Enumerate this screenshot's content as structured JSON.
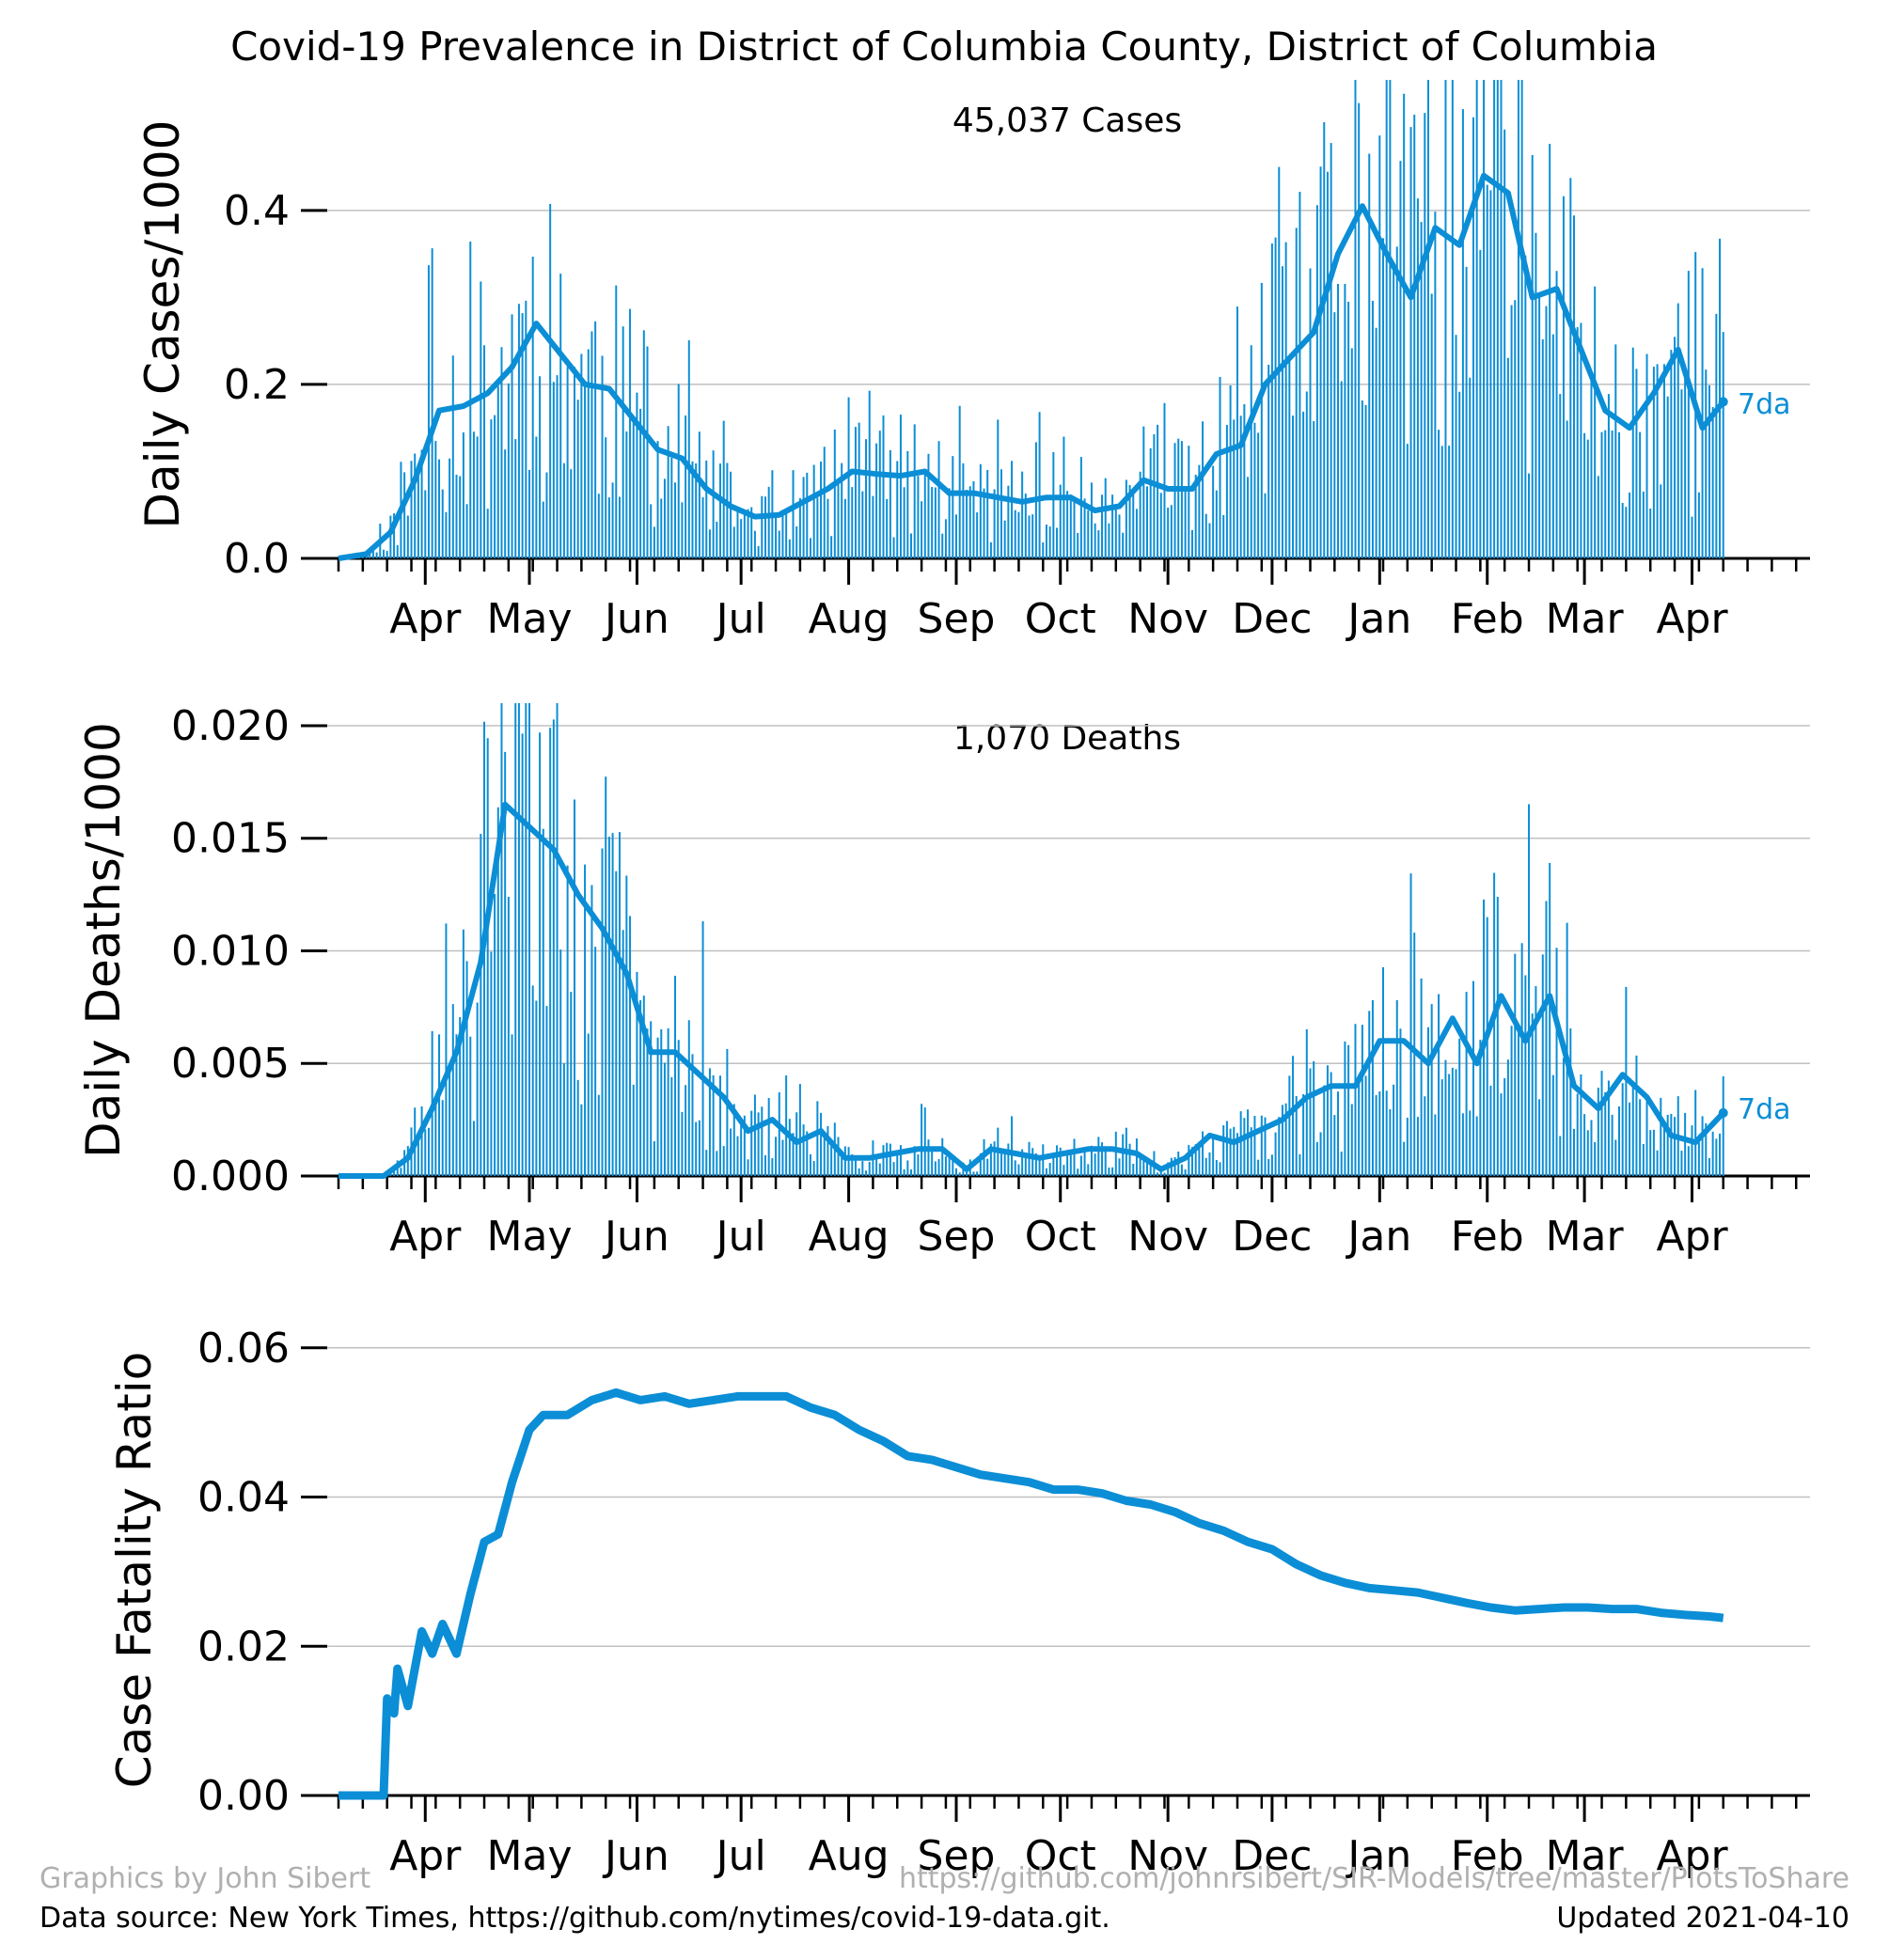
{
  "figure": {
    "title": "Covid-19 Prevalence in District of Columbia County, District of Columbia",
    "credit_left": "Graphics by John Sibert",
    "credit_right": "https://github.com/johnrsibert/SIR-Models/tree/master/PlotsToShare",
    "source": "Data source: New York Times, https://github.com/nytimes/covid-19-data.git.",
    "updated": "Updated 2021-04-10",
    "colors": {
      "series": "#0b8ed6",
      "grid": "#c0c0c0",
      "credit": "#b0b0b0"
    }
  },
  "chart_data": [
    {
      "type": "bar",
      "panel": "cases",
      "ylabel": "Daily Cases/1000",
      "annotation": "45,037 Cases",
      "line_label": "7da",
      "ylim": [
        0,
        0.55
      ],
      "yticks": [
        0.0,
        0.2,
        0.4
      ],
      "ytick_labels": [
        "0.0",
        "0.2",
        "0.4"
      ],
      "grid": true,
      "x_start": "2020-03-07",
      "x_end": "2021-04-10",
      "month_labels": [
        "Apr",
        "May",
        "Jun",
        "Jul",
        "Aug",
        "Sep",
        "Oct",
        "Nov",
        "Dec",
        "Jan",
        "Feb",
        "Mar",
        "Apr"
      ],
      "series": [
        {
          "name": "7da",
          "kind": "line",
          "points": [
            [
              "2020-03-07",
              0.0
            ],
            [
              "2020-03-15",
              0.005
            ],
            [
              "2020-03-22",
              0.03
            ],
            [
              "2020-03-29",
              0.09
            ],
            [
              "2020-04-05",
              0.17
            ],
            [
              "2020-04-12",
              0.175
            ],
            [
              "2020-04-19",
              0.19
            ],
            [
              "2020-04-26",
              0.22
            ],
            [
              "2020-05-03",
              0.27
            ],
            [
              "2020-05-10",
              0.235
            ],
            [
              "2020-05-17",
              0.2
            ],
            [
              "2020-05-24",
              0.195
            ],
            [
              "2020-05-31",
              0.16
            ],
            [
              "2020-06-07",
              0.125
            ],
            [
              "2020-06-14",
              0.115
            ],
            [
              "2020-06-21",
              0.08
            ],
            [
              "2020-06-28",
              0.06
            ],
            [
              "2020-07-05",
              0.048
            ],
            [
              "2020-07-12",
              0.05
            ],
            [
              "2020-07-19",
              0.065
            ],
            [
              "2020-07-26",
              0.08
            ],
            [
              "2020-08-02",
              0.1
            ],
            [
              "2020-08-09",
              0.097
            ],
            [
              "2020-08-16",
              0.095
            ],
            [
              "2020-08-23",
              0.1
            ],
            [
              "2020-08-30",
              0.075
            ],
            [
              "2020-09-06",
              0.075
            ],
            [
              "2020-09-13",
              0.07
            ],
            [
              "2020-09-20",
              0.065
            ],
            [
              "2020-09-27",
              0.07
            ],
            [
              "2020-10-04",
              0.07
            ],
            [
              "2020-10-11",
              0.055
            ],
            [
              "2020-10-18",
              0.06
            ],
            [
              "2020-10-25",
              0.09
            ],
            [
              "2020-11-01",
              0.08
            ],
            [
              "2020-11-08",
              0.08
            ],
            [
              "2020-11-15",
              0.12
            ],
            [
              "2020-11-22",
              0.13
            ],
            [
              "2020-11-29",
              0.2
            ],
            [
              "2020-12-06",
              0.23
            ],
            [
              "2020-12-13",
              0.26
            ],
            [
              "2020-12-20",
              0.35
            ],
            [
              "2020-12-27",
              0.405
            ],
            [
              "2021-01-03",
              0.35
            ],
            [
              "2021-01-10",
              0.3
            ],
            [
              "2021-01-17",
              0.38
            ],
            [
              "2021-01-24",
              0.36
            ],
            [
              "2021-01-31",
              0.44
            ],
            [
              "2021-02-07",
              0.42
            ],
            [
              "2021-02-14",
              0.3
            ],
            [
              "2021-02-21",
              0.31
            ],
            [
              "2021-02-28",
              0.24
            ],
            [
              "2021-03-07",
              0.17
            ],
            [
              "2021-03-14",
              0.15
            ],
            [
              "2021-03-21",
              0.19
            ],
            [
              "2021-03-28",
              0.24
            ],
            [
              "2021-04-04",
              0.15
            ],
            [
              "2021-04-10",
              0.18
            ]
          ]
        }
      ]
    },
    {
      "type": "bar",
      "panel": "deaths",
      "ylabel": "Daily Deaths/1000",
      "annotation": "1,070 Deaths",
      "line_label": "7da",
      "ylim": [
        0,
        0.021
      ],
      "yticks": [
        0.0,
        0.005,
        0.01,
        0.015,
        0.02
      ],
      "ytick_labels": [
        "0.000",
        "0.005",
        "0.010",
        "0.015",
        "0.020"
      ],
      "grid": true,
      "x_start": "2020-03-07",
      "x_end": "2021-04-10",
      "month_labels": [
        "Apr",
        "May",
        "Jun",
        "Jul",
        "Aug",
        "Sep",
        "Oct",
        "Nov",
        "Dec",
        "Jan",
        "Feb",
        "Mar",
        "Apr"
      ],
      "series": [
        {
          "name": "7da",
          "kind": "line",
          "points": [
            [
              "2020-03-07",
              0.0
            ],
            [
              "2020-03-20",
              0.0
            ],
            [
              "2020-03-27",
              0.0008
            ],
            [
              "2020-04-03",
              0.003
            ],
            [
              "2020-04-10",
              0.0055
            ],
            [
              "2020-04-17",
              0.0095
            ],
            [
              "2020-04-24",
              0.0165
            ],
            [
              "2020-05-01",
              0.0155
            ],
            [
              "2020-05-08",
              0.0145
            ],
            [
              "2020-05-15",
              0.0125
            ],
            [
              "2020-05-22",
              0.011
            ],
            [
              "2020-05-29",
              0.009
            ],
            [
              "2020-06-05",
              0.0055
            ],
            [
              "2020-06-12",
              0.0055
            ],
            [
              "2020-06-19",
              0.0045
            ],
            [
              "2020-06-26",
              0.0035
            ],
            [
              "2020-07-03",
              0.002
            ],
            [
              "2020-07-10",
              0.0025
            ],
            [
              "2020-07-17",
              0.0015
            ],
            [
              "2020-07-24",
              0.002
            ],
            [
              "2020-07-31",
              0.0008
            ],
            [
              "2020-08-07",
              0.0008
            ],
            [
              "2020-08-14",
              0.001
            ],
            [
              "2020-08-21",
              0.0012
            ],
            [
              "2020-08-28",
              0.0012
            ],
            [
              "2020-09-04",
              0.0003
            ],
            [
              "2020-09-11",
              0.0012
            ],
            [
              "2020-09-18",
              0.001
            ],
            [
              "2020-09-25",
              0.0008
            ],
            [
              "2020-10-02",
              0.001
            ],
            [
              "2020-10-09",
              0.0012
            ],
            [
              "2020-10-16",
              0.0012
            ],
            [
              "2020-10-23",
              0.001
            ],
            [
              "2020-10-30",
              0.0003
            ],
            [
              "2020-11-06",
              0.0008
            ],
            [
              "2020-11-13",
              0.0018
            ],
            [
              "2020-11-20",
              0.0015
            ],
            [
              "2020-11-27",
              0.002
            ],
            [
              "2020-12-04",
              0.0025
            ],
            [
              "2020-12-11",
              0.0035
            ],
            [
              "2020-12-18",
              0.004
            ],
            [
              "2020-12-25",
              0.004
            ],
            [
              "2021-01-01",
              0.006
            ],
            [
              "2021-01-08",
              0.006
            ],
            [
              "2021-01-15",
              0.005
            ],
            [
              "2021-01-22",
              0.007
            ],
            [
              "2021-01-29",
              0.005
            ],
            [
              "2021-02-05",
              0.008
            ],
            [
              "2021-02-12",
              0.006
            ],
            [
              "2021-02-19",
              0.008
            ],
            [
              "2021-02-26",
              0.004
            ],
            [
              "2021-03-05",
              0.003
            ],
            [
              "2021-03-12",
              0.0045
            ],
            [
              "2021-03-19",
              0.0035
            ],
            [
              "2021-03-26",
              0.0018
            ],
            [
              "2021-04-02",
              0.0015
            ],
            [
              "2021-04-10",
              0.0028
            ]
          ]
        }
      ]
    },
    {
      "type": "line",
      "panel": "cfr",
      "ylabel": "Case Fatality Ratio",
      "ylim": [
        0,
        0.063
      ],
      "yticks": [
        0.0,
        0.02,
        0.04,
        0.06
      ],
      "ytick_labels": [
        "0.00",
        "0.02",
        "0.04",
        "0.06"
      ],
      "grid": true,
      "x_start": "2020-03-07",
      "x_end": "2021-04-10",
      "month_labels": [
        "Apr",
        "May",
        "Jun",
        "Jul",
        "Aug",
        "Sep",
        "Oct",
        "Nov",
        "Dec",
        "Jan",
        "Feb",
        "Mar",
        "Apr"
      ],
      "series": [
        {
          "kind": "line",
          "points": [
            [
              "2020-03-07",
              0.0
            ],
            [
              "2020-03-20",
              0.0
            ],
            [
              "2020-03-21",
              0.013
            ],
            [
              "2020-03-23",
              0.011
            ],
            [
              "2020-03-24",
              0.017
            ],
            [
              "2020-03-27",
              0.012
            ],
            [
              "2020-03-31",
              0.022
            ],
            [
              "2020-04-03",
              0.019
            ],
            [
              "2020-04-06",
              0.023
            ],
            [
              "2020-04-10",
              0.019
            ],
            [
              "2020-04-14",
              0.027
            ],
            [
              "2020-04-18",
              0.034
            ],
            [
              "2020-04-22",
              0.035
            ],
            [
              "2020-04-26",
              0.042
            ],
            [
              "2020-05-01",
              0.049
            ],
            [
              "2020-05-05",
              0.051
            ],
            [
              "2020-05-12",
              0.051
            ],
            [
              "2020-05-19",
              0.053
            ],
            [
              "2020-05-26",
              0.054
            ],
            [
              "2020-06-02",
              0.053
            ],
            [
              "2020-06-09",
              0.0535
            ],
            [
              "2020-06-16",
              0.0525
            ],
            [
              "2020-06-23",
              0.053
            ],
            [
              "2020-06-30",
              0.0535
            ],
            [
              "2020-07-07",
              0.0535
            ],
            [
              "2020-07-14",
              0.0535
            ],
            [
              "2020-07-21",
              0.052
            ],
            [
              "2020-07-28",
              0.051
            ],
            [
              "2020-08-04",
              0.049
            ],
            [
              "2020-08-11",
              0.0475
            ],
            [
              "2020-08-18",
              0.0455
            ],
            [
              "2020-08-25",
              0.045
            ],
            [
              "2020-09-01",
              0.044
            ],
            [
              "2020-09-08",
              0.043
            ],
            [
              "2020-09-15",
              0.0425
            ],
            [
              "2020-09-22",
              0.042
            ],
            [
              "2020-09-29",
              0.041
            ],
            [
              "2020-10-06",
              0.041
            ],
            [
              "2020-10-13",
              0.0405
            ],
            [
              "2020-10-20",
              0.0395
            ],
            [
              "2020-10-27",
              0.039
            ],
            [
              "2020-11-03",
              0.038
            ],
            [
              "2020-11-10",
              0.0365
            ],
            [
              "2020-11-17",
              0.0355
            ],
            [
              "2020-11-24",
              0.034
            ],
            [
              "2020-12-01",
              0.033
            ],
            [
              "2020-12-08",
              0.031
            ],
            [
              "2020-12-15",
              0.0295
            ],
            [
              "2020-12-22",
              0.0285
            ],
            [
              "2020-12-29",
              0.0278
            ],
            [
              "2021-01-05",
              0.0275
            ],
            [
              "2021-01-12",
              0.0272
            ],
            [
              "2021-01-19",
              0.0265
            ],
            [
              "2021-01-26",
              0.0258
            ],
            [
              "2021-02-02",
              0.0252
            ],
            [
              "2021-02-09",
              0.0248
            ],
            [
              "2021-02-16",
              0.025
            ],
            [
              "2021-02-23",
              0.0252
            ],
            [
              "2021-03-02",
              0.0252
            ],
            [
              "2021-03-09",
              0.025
            ],
            [
              "2021-03-16",
              0.025
            ],
            [
              "2021-03-23",
              0.0245
            ],
            [
              "2021-03-30",
              0.0242
            ],
            [
              "2021-04-06",
              0.024
            ],
            [
              "2021-04-10",
              0.0238
            ]
          ]
        }
      ]
    }
  ]
}
